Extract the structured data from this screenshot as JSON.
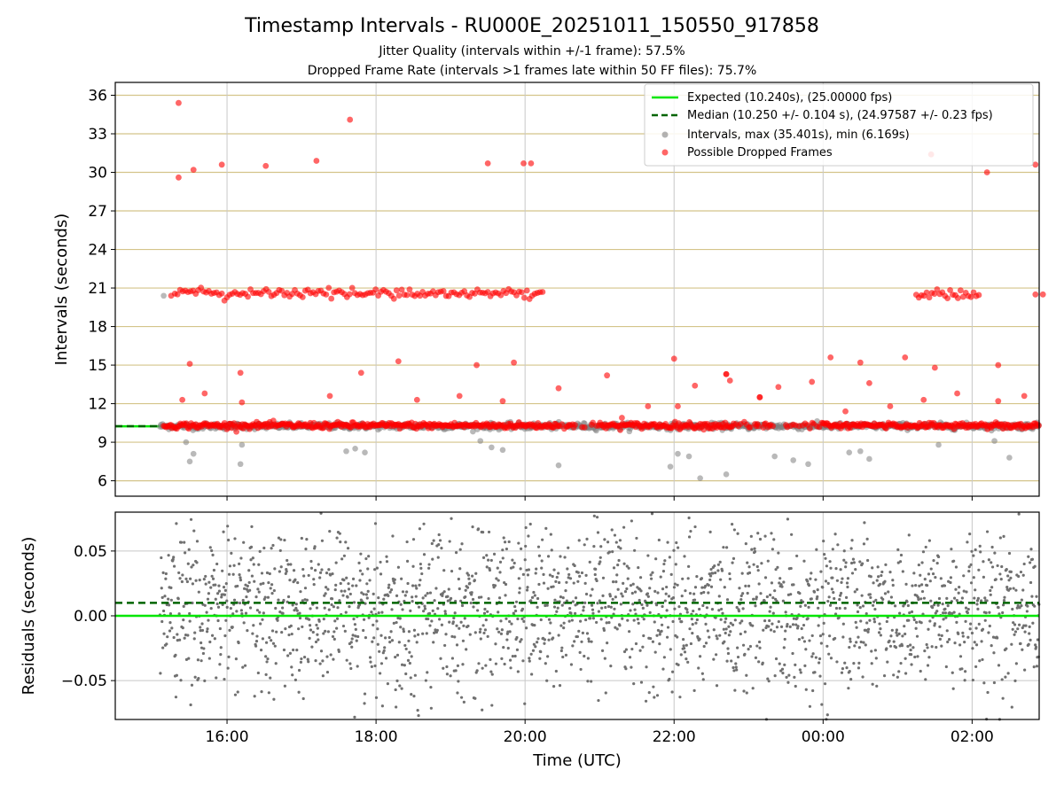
{
  "title": "Timestamp Intervals - RU000E_20251011_150550_917858",
  "subtitle_lines": [
    "Jitter Quality (intervals within +/-1 frame): 57.5%",
    "Dropped Frame Rate (intervals >1 frames late within 50 FF files): 75.7%"
  ],
  "colors": {
    "expected": "#00e600",
    "median": "#006400",
    "intervals": "#808080",
    "dropped": "#ff0000",
    "grid_top": "#d4c48a",
    "grid_bottom": "#c8c8c8"
  },
  "chart_data": [
    {
      "type": "scatter",
      "panel": "top",
      "xlabel": "",
      "ylabel": "Intervals (seconds)",
      "x_range_hours": [
        14.5,
        26.9
      ],
      "ylim": [
        4.8,
        37.0
      ],
      "yticks": [
        6,
        9,
        12,
        15,
        18,
        21,
        24,
        27,
        30,
        33,
        36
      ],
      "ytick_labels": [
        "6",
        "9",
        "12",
        "15",
        "18",
        "21",
        "24",
        "27",
        "30",
        "33",
        "36"
      ],
      "grid": "horizontal",
      "legend_position": "top-right",
      "legend": [
        "Expected (10.240s), (25.00000 fps)",
        "Median (10.250 +/- 0.104 s), (24.97587 +/- 0.23 fps)",
        "Intervals, max (35.401s), min (6.169s)",
        "Possible Dropped Frames"
      ],
      "expected_line": 10.24,
      "median_line": 10.25,
      "baseline_band": {
        "center": 10.25,
        "from_hour": 15.1,
        "to_hour": 26.9
      },
      "dropped_bands": [
        {
          "from_hour": 15.3,
          "to_hour": 20.25,
          "center": 20.6
        },
        {
          "from_hour": 25.25,
          "to_hour": 26.1,
          "center": 20.5
        }
      ],
      "dropped_points": [
        [
          15.35,
          35.4
        ],
        [
          15.35,
          29.6
        ],
        [
          15.55,
          30.2
        ],
        [
          15.93,
          30.6
        ],
        [
          16.52,
          30.5
        ],
        [
          17.2,
          30.9
        ],
        [
          17.65,
          34.1
        ],
        [
          19.5,
          30.7
        ],
        [
          19.98,
          30.7
        ],
        [
          20.08,
          30.7
        ],
        [
          25.45,
          31.4
        ],
        [
          26.2,
          30.0
        ],
        [
          26.85,
          30.6
        ],
        [
          15.5,
          15.1
        ],
        [
          16.18,
          14.4
        ],
        [
          17.8,
          14.4
        ],
        [
          18.3,
          15.3
        ],
        [
          19.35,
          15.0
        ],
        [
          19.85,
          15.2
        ],
        [
          21.1,
          14.2
        ],
        [
          22.0,
          15.5
        ],
        [
          22.7,
          14.3
        ],
        [
          23.4,
          13.3
        ],
        [
          24.1,
          15.6
        ],
        [
          24.5,
          15.2
        ],
        [
          25.1,
          15.6
        ],
        [
          25.5,
          14.8
        ],
        [
          26.35,
          15.0
        ],
        [
          15.25,
          20.4
        ],
        [
          23.15,
          12.5
        ],
        [
          26.85,
          20.5
        ],
        [
          26.95,
          20.5
        ],
        [
          15.4,
          12.3
        ],
        [
          15.7,
          12.8
        ],
        [
          16.2,
          12.1
        ],
        [
          17.38,
          12.6
        ],
        [
          18.55,
          12.3
        ],
        [
          19.12,
          12.6
        ],
        [
          19.7,
          12.2
        ],
        [
          20.45,
          13.2
        ],
        [
          21.3,
          10.9
        ],
        [
          22.05,
          11.8
        ],
        [
          22.28,
          13.4
        ],
        [
          22.75,
          13.8
        ],
        [
          23.85,
          13.7
        ],
        [
          24.3,
          11.4
        ],
        [
          24.62,
          13.6
        ],
        [
          25.35,
          12.3
        ],
        [
          25.8,
          12.8
        ],
        [
          26.35,
          12.2
        ],
        [
          22.7,
          14.3
        ],
        [
          23.15,
          12.5
        ],
        [
          21.65,
          11.8
        ],
        [
          24.9,
          11.8
        ],
        [
          26.7,
          12.6
        ]
      ],
      "interval_outliers": [
        [
          15.15,
          20.4
        ],
        [
          15.45,
          9.0
        ],
        [
          15.5,
          7.5
        ],
        [
          15.55,
          8.1
        ],
        [
          16.18,
          7.3
        ],
        [
          16.2,
          8.8
        ],
        [
          17.6,
          8.3
        ],
        [
          17.72,
          8.5
        ],
        [
          17.85,
          8.2
        ],
        [
          19.4,
          9.1
        ],
        [
          19.55,
          8.6
        ],
        [
          19.7,
          8.4
        ],
        [
          20.45,
          7.2
        ],
        [
          21.95,
          7.1
        ],
        [
          22.05,
          8.1
        ],
        [
          22.2,
          7.9
        ],
        [
          22.35,
          6.2
        ],
        [
          22.7,
          6.5
        ],
        [
          23.35,
          7.9
        ],
        [
          23.6,
          7.6
        ],
        [
          23.8,
          7.3
        ],
        [
          24.35,
          8.2
        ],
        [
          24.5,
          8.3
        ],
        [
          24.62,
          7.7
        ],
        [
          25.55,
          8.8
        ],
        [
          26.3,
          9.1
        ],
        [
          26.5,
          7.8
        ]
      ]
    },
    {
      "type": "scatter",
      "panel": "bottom",
      "xlabel": "Time (UTC)",
      "ylabel": "Residuals (seconds)",
      "ylim": [
        -0.08,
        0.08
      ],
      "yticks": [
        -0.05,
        0.0,
        0.05
      ],
      "ytick_labels": [
        "−0.05",
        "0.00",
        "0.05"
      ],
      "expected_line": 0.0,
      "median_line": 0.01,
      "residual_spread": [
        -0.08,
        0.08
      ],
      "x_range_hours": [
        14.5,
        26.9
      ],
      "xticks_hours": [
        16,
        18,
        20,
        22,
        24,
        26
      ],
      "xtick_labels": [
        "16:00",
        "18:00",
        "20:00",
        "22:00",
        "00:00",
        "02:00"
      ],
      "grid": "both"
    }
  ]
}
